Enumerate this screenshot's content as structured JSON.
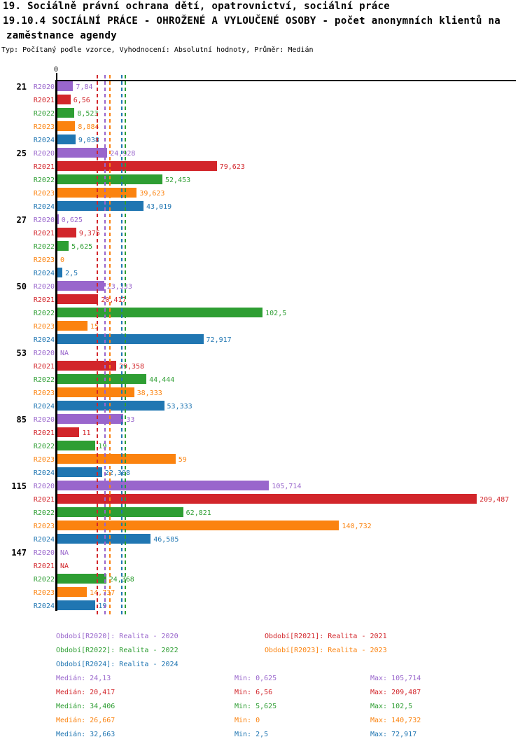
{
  "header": {
    "title_line1": "19. Sociálně právní ochrana dětí, opatrovnictví, sociální práce",
    "title_line2": "19.10.4 SOCIÁLNÍ PRÁCE - OHROŽENÉ A VYLOUČENÉ OSOBY - počet anonymních klientů na",
    "title_line3": "zaměstnance agendy",
    "subtitle": "Typ: Počítaný podle vzorce, Vyhodnocení: Absolutní hodnoty, Průměr: Medián"
  },
  "axis": {
    "zero": "0"
  },
  "chart_data": {
    "type": "bar",
    "orientation": "horizontal",
    "na_text": "NA",
    "xlim": [
      0,
      230
    ],
    "categories": [
      "21",
      "25",
      "27",
      "50",
      "53",
      "85",
      "115",
      "147"
    ],
    "series": [
      {
        "name": "Období[R2020]",
        "short": "R2020",
        "legend": "Období[R2020]: Realita - 2020",
        "color": "#9966cc",
        "values": [
          7.84,
          24.928,
          0.625,
          23.333,
          null,
          33,
          105.714,
          null
        ],
        "value_labels": [
          "7,84",
          "24,928",
          "0,625",
          "23,333",
          "NA",
          "33",
          "105,714",
          "NA"
        ],
        "median": 24.13,
        "stats": {
          "median": "Medián: 24,13",
          "min": "Min: 0,625",
          "max": "Max: 105,714"
        }
      },
      {
        "name": "Období[R2021]",
        "short": "R2021",
        "legend": "Období[R2021]: Realita - 2021",
        "color": "#d2262b",
        "values": [
          6.56,
          79.623,
          9.375,
          20.417,
          29.358,
          11,
          209.487,
          null
        ],
        "value_labels": [
          "6,56",
          "79,623",
          "9,375",
          "20,417",
          "29,358",
          "11",
          "209,487",
          "NA"
        ],
        "median": 20.417,
        "stats": {
          "median": "Medián: 20,417",
          "min": "Min: 6,56",
          "max": "Max: 209,487"
        }
      },
      {
        "name": "Období[R2022]",
        "short": "R2022",
        "legend": "Období[R2022]: Realita - 2022",
        "color": "#2e9e33",
        "values": [
          8.523,
          52.453,
          5.625,
          102.5,
          44.444,
          19,
          62.821,
          24.368
        ],
        "value_labels": [
          "8,523",
          "52,453",
          "5,625",
          "102,5",
          "44,444",
          "19",
          "62,821",
          "24,368"
        ],
        "median": 34.406,
        "stats": {
          "median": "Medián: 34,406",
          "min": "Min: 5,625",
          "max": "Max: 102,5"
        }
      },
      {
        "name": "Období[R2023]",
        "short": "R2023",
        "legend": "Období[R2023]: Realita - 2023",
        "color": "#fb830f",
        "values": [
          8.884,
          39.623,
          0,
          15,
          38.333,
          59,
          140.732,
          14.737
        ],
        "value_labels": [
          "8,884",
          "39,623",
          "0",
          "15",
          "38,333",
          "59",
          "140,732",
          "14,737"
        ],
        "median": 26.667,
        "stats": {
          "median": "Medián: 26,667",
          "min": "Min: 0",
          "max": "Max: 140,732"
        }
      },
      {
        "name": "Období[R2024]",
        "short": "R2024",
        "legend": "Období[R2024]: Realita - 2024",
        "color": "#2076b2",
        "values": [
          9.038,
          43.019,
          2.5,
          72.917,
          53.333,
          22.308,
          46.585,
          19
        ],
        "value_labels": [
          "9,038",
          "43,019",
          "2,5",
          "72,917",
          "53,333",
          "22,308",
          "46,585",
          "19"
        ],
        "median": 32.663,
        "stats": {
          "median": "Medián: 32,663",
          "min": "Min: 2,5",
          "max": "Max: 72,917"
        }
      }
    ]
  }
}
